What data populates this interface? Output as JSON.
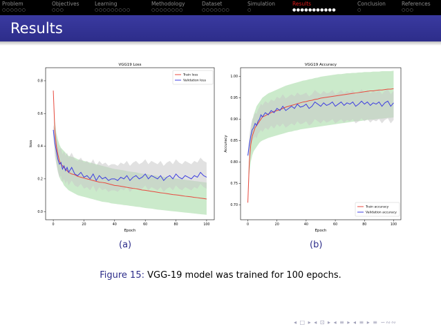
{
  "nav": {
    "sections": [
      {
        "label": "Problem",
        "dots": "○○○○○○",
        "active": false
      },
      {
        "label": "Objectives",
        "dots": "○○○",
        "active": false
      },
      {
        "label": "Learning",
        "dots": "○○○○○○○○○",
        "active": false
      },
      {
        "label": "Methodology",
        "dots": "○○○○○○○○",
        "active": false
      },
      {
        "label": "Dataset",
        "dots": "○○○○○○○",
        "active": false
      },
      {
        "label": "Simulation",
        "dots": "○",
        "active": false
      },
      {
        "label": "Results",
        "dots": "●●●●●●●●●●●",
        "active": true
      },
      {
        "label": "Conclusion",
        "dots": "○",
        "active": false
      },
      {
        "label": "References",
        "dots": "○○○",
        "active": false
      }
    ]
  },
  "frame": {
    "title": "Results"
  },
  "colors": {
    "train": "#e8473d",
    "validation": "#3d3de0",
    "train_band": "#a8dca8",
    "validation_band": "#c8c8c8",
    "accent": "#2d2d8a"
  },
  "chart_data": [
    {
      "type": "line",
      "title": "VGG19 Loss",
      "xlabel": "Epoch",
      "ylabel": "loss",
      "xlim": [
        -5,
        105
      ],
      "ylim": [
        -0.05,
        0.88
      ],
      "xticks": [
        0,
        20,
        40,
        60,
        80,
        100
      ],
      "yticks": [
        0.0,
        0.2,
        0.4,
        0.6,
        0.8
      ],
      "ytick_labels": [
        "0.0",
        "0.2",
        "0.4",
        "0.6",
        "0.8"
      ],
      "legend_position": "top-right",
      "x": [
        0,
        1,
        2,
        3,
        4,
        5,
        6,
        7,
        8,
        9,
        10,
        12,
        14,
        16,
        18,
        20,
        22,
        24,
        26,
        28,
        30,
        32,
        34,
        36,
        38,
        40,
        42,
        44,
        46,
        48,
        50,
        52,
        54,
        56,
        58,
        60,
        62,
        64,
        66,
        68,
        70,
        72,
        74,
        76,
        78,
        80,
        82,
        84,
        86,
        88,
        90,
        92,
        94,
        96,
        98,
        100
      ],
      "series": [
        {
          "name": "Train loss",
          "values": [
            0.74,
            0.5,
            0.4,
            0.35,
            0.31,
            0.29,
            0.28,
            0.27,
            0.26,
            0.25,
            0.24,
            0.23,
            0.225,
            0.215,
            0.21,
            0.205,
            0.2,
            0.195,
            0.19,
            0.185,
            0.18,
            0.178,
            0.175,
            0.17,
            0.165,
            0.16,
            0.158,
            0.155,
            0.152,
            0.148,
            0.145,
            0.142,
            0.14,
            0.136,
            0.132,
            0.13,
            0.127,
            0.124,
            0.121,
            0.118,
            0.115,
            0.113,
            0.11,
            0.107,
            0.104,
            0.102,
            0.1,
            0.097,
            0.094,
            0.092,
            0.09,
            0.087,
            0.085,
            0.082,
            0.08,
            0.077
          ],
          "lower": [
            0.73,
            0.4,
            0.3,
            0.25,
            0.21,
            0.19,
            0.18,
            0.16,
            0.15,
            0.14,
            0.13,
            0.12,
            0.11,
            0.1,
            0.095,
            0.09,
            0.085,
            0.08,
            0.075,
            0.07,
            0.065,
            0.06,
            0.058,
            0.055,
            0.05,
            0.048,
            0.045,
            0.043,
            0.04,
            0.038,
            0.035,
            0.033,
            0.03,
            0.028,
            0.025,
            0.022,
            0.02,
            0.018,
            0.015,
            0.012,
            0.01,
            0.008,
            0.006,
            0.004,
            0.002,
            0.0,
            -0.002,
            -0.004,
            -0.006,
            -0.008,
            -0.01,
            -0.012,
            -0.014,
            -0.016,
            -0.018,
            -0.02
          ],
          "upper": [
            0.75,
            0.56,
            0.48,
            0.44,
            0.41,
            0.39,
            0.38,
            0.37,
            0.36,
            0.35,
            0.34,
            0.335,
            0.33,
            0.32,
            0.315,
            0.31,
            0.305,
            0.3,
            0.295,
            0.29,
            0.285,
            0.28,
            0.275,
            0.27,
            0.265,
            0.26,
            0.258,
            0.255,
            0.252,
            0.248,
            0.245,
            0.242,
            0.24,
            0.236,
            0.232,
            0.23,
            0.227,
            0.224,
            0.221,
            0.218,
            0.215,
            0.213,
            0.21,
            0.207,
            0.204,
            0.202,
            0.2,
            0.197,
            0.194,
            0.192,
            0.19,
            0.187,
            0.185,
            0.182,
            0.18,
            0.177
          ]
        },
        {
          "name": "Validation loss",
          "values": [
            0.5,
            0.42,
            0.37,
            0.32,
            0.29,
            0.3,
            0.26,
            0.28,
            0.25,
            0.27,
            0.24,
            0.27,
            0.23,
            0.22,
            0.24,
            0.21,
            0.22,
            0.2,
            0.23,
            0.19,
            0.22,
            0.2,
            0.21,
            0.19,
            0.2,
            0.2,
            0.19,
            0.21,
            0.2,
            0.22,
            0.19,
            0.21,
            0.22,
            0.2,
            0.21,
            0.23,
            0.2,
            0.22,
            0.21,
            0.2,
            0.22,
            0.19,
            0.21,
            0.22,
            0.2,
            0.23,
            0.21,
            0.2,
            0.22,
            0.21,
            0.2,
            0.22,
            0.21,
            0.24,
            0.22,
            0.21
          ],
          "lower": [
            0.47,
            0.34,
            0.29,
            0.24,
            0.21,
            0.22,
            0.18,
            0.2,
            0.17,
            0.19,
            0.16,
            0.19,
            0.16,
            0.15,
            0.17,
            0.14,
            0.15,
            0.13,
            0.16,
            0.12,
            0.15,
            0.13,
            0.14,
            0.12,
            0.13,
            0.13,
            0.12,
            0.14,
            0.13,
            0.15,
            0.12,
            0.14,
            0.15,
            0.13,
            0.14,
            0.16,
            0.13,
            0.15,
            0.14,
            0.13,
            0.15,
            0.12,
            0.14,
            0.15,
            0.13,
            0.16,
            0.14,
            0.13,
            0.15,
            0.14,
            0.13,
            0.15,
            0.14,
            0.17,
            0.15,
            0.14
          ],
          "upper": [
            0.53,
            0.5,
            0.45,
            0.41,
            0.38,
            0.39,
            0.35,
            0.37,
            0.34,
            0.36,
            0.33,
            0.36,
            0.32,
            0.31,
            0.33,
            0.3,
            0.31,
            0.29,
            0.32,
            0.28,
            0.31,
            0.29,
            0.3,
            0.28,
            0.29,
            0.29,
            0.28,
            0.3,
            0.29,
            0.31,
            0.28,
            0.3,
            0.31,
            0.29,
            0.3,
            0.32,
            0.29,
            0.31,
            0.3,
            0.29,
            0.31,
            0.28,
            0.3,
            0.31,
            0.29,
            0.32,
            0.3,
            0.29,
            0.31,
            0.3,
            0.29,
            0.31,
            0.3,
            0.33,
            0.31,
            0.3
          ]
        }
      ]
    },
    {
      "type": "line",
      "title": "VGG19 Accuracy",
      "xlabel": "Epoch",
      "ylabel": "Accuracy",
      "xlim": [
        -5,
        105
      ],
      "ylim": [
        0.665,
        1.02
      ],
      "xticks": [
        0,
        20,
        40,
        60,
        80,
        100
      ],
      "yticks": [
        0.7,
        0.75,
        0.8,
        0.85,
        0.9,
        0.95,
        1.0
      ],
      "ytick_labels": [
        "0.70",
        "0.75",
        "0.80",
        "0.85",
        "0.90",
        "0.95",
        "1.00"
      ],
      "legend_position": "bottom-right",
      "x": [
        0,
        1,
        2,
        3,
        4,
        5,
        6,
        7,
        8,
        9,
        10,
        12,
        14,
        16,
        18,
        20,
        22,
        24,
        26,
        28,
        30,
        32,
        34,
        36,
        38,
        40,
        42,
        44,
        46,
        48,
        50,
        52,
        54,
        56,
        58,
        60,
        62,
        64,
        66,
        68,
        70,
        72,
        74,
        76,
        78,
        80,
        82,
        84,
        86,
        88,
        90,
        92,
        94,
        96,
        98,
        100
      ],
      "series": [
        {
          "name": "Train accuracy",
          "values": [
            0.705,
            0.8,
            0.84,
            0.86,
            0.87,
            0.88,
            0.885,
            0.89,
            0.895,
            0.9,
            0.905,
            0.908,
            0.912,
            0.915,
            0.918,
            0.92,
            0.922,
            0.925,
            0.928,
            0.93,
            0.932,
            0.934,
            0.936,
            0.938,
            0.94,
            0.941,
            0.943,
            0.944,
            0.946,
            0.947,
            0.949,
            0.95,
            0.951,
            0.952,
            0.953,
            0.954,
            0.955,
            0.956,
            0.957,
            0.958,
            0.959,
            0.96,
            0.961,
            0.962,
            0.963,
            0.964,
            0.965,
            0.966,
            0.966,
            0.967,
            0.968,
            0.968,
            0.969,
            0.97,
            0.97,
            0.971
          ],
          "lower": [
            0.7,
            0.77,
            0.8,
            0.815,
            0.825,
            0.83,
            0.835,
            0.84,
            0.845,
            0.848,
            0.85,
            0.853,
            0.856,
            0.858,
            0.86,
            0.862,
            0.864,
            0.866,
            0.868,
            0.87,
            0.871,
            0.873,
            0.874,
            0.876,
            0.877,
            0.878,
            0.879,
            0.88,
            0.881,
            0.882,
            0.883,
            0.884,
            0.885,
            0.886,
            0.887,
            0.888,
            0.889,
            0.89,
            0.891,
            0.892,
            0.893,
            0.894,
            0.895,
            0.895,
            0.896,
            0.897,
            0.898,
            0.899,
            0.899,
            0.9,
            0.901,
            0.901,
            0.902,
            0.903,
            0.903,
            0.904
          ],
          "upper": [
            0.71,
            0.83,
            0.87,
            0.895,
            0.91,
            0.92,
            0.93,
            0.935,
            0.94,
            0.945,
            0.95,
            0.955,
            0.96,
            0.963,
            0.966,
            0.969,
            0.972,
            0.975,
            0.978,
            0.98,
            0.982,
            0.984,
            0.986,
            0.988,
            0.99,
            0.991,
            0.993,
            0.994,
            0.996,
            0.997,
            0.999,
            1.0,
            1.001,
            1.002,
            1.003,
            1.004,
            1.005,
            1.005,
            1.006,
            1.007,
            1.007,
            1.008,
            1.008,
            1.009,
            1.009,
            1.01,
            1.01,
            1.01,
            1.011,
            1.011,
            1.011,
            1.012,
            1.012,
            1.012,
            1.012,
            1.013
          ]
        },
        {
          "name": "Validation accuracy",
          "values": [
            0.815,
            0.84,
            0.86,
            0.875,
            0.88,
            0.89,
            0.885,
            0.895,
            0.9,
            0.91,
            0.905,
            0.915,
            0.91,
            0.92,
            0.915,
            0.925,
            0.92,
            0.93,
            0.92,
            0.925,
            0.93,
            0.925,
            0.935,
            0.928,
            0.93,
            0.935,
            0.925,
            0.93,
            0.94,
            0.935,
            0.93,
            0.938,
            0.932,
            0.935,
            0.94,
            0.93,
            0.935,
            0.94,
            0.932,
            0.938,
            0.935,
            0.94,
            0.93,
            0.935,
            0.942,
            0.935,
            0.94,
            0.932,
            0.938,
            0.935,
            0.94,
            0.93,
            0.938,
            0.942,
            0.93,
            0.938
          ],
          "lower": [
            0.81,
            0.82,
            0.835,
            0.85,
            0.855,
            0.86,
            0.855,
            0.865,
            0.87,
            0.875,
            0.87,
            0.88,
            0.875,
            0.885,
            0.878,
            0.888,
            0.882,
            0.89,
            0.88,
            0.885,
            0.89,
            0.885,
            0.895,
            0.888,
            0.89,
            0.895,
            0.885,
            0.89,
            0.9,
            0.895,
            0.89,
            0.898,
            0.892,
            0.895,
            0.9,
            0.89,
            0.895,
            0.9,
            0.892,
            0.898,
            0.895,
            0.9,
            0.89,
            0.895,
            0.902,
            0.895,
            0.9,
            0.892,
            0.898,
            0.895,
            0.9,
            0.89,
            0.898,
            0.902,
            0.89,
            0.898
          ],
          "upper": [
            0.82,
            0.86,
            0.885,
            0.9,
            0.905,
            0.915,
            0.912,
            0.922,
            0.928,
            0.936,
            0.932,
            0.942,
            0.937,
            0.946,
            0.942,
            0.952,
            0.948,
            0.958,
            0.948,
            0.953,
            0.958,
            0.953,
            0.962,
            0.956,
            0.958,
            0.962,
            0.953,
            0.958,
            0.968,
            0.962,
            0.958,
            0.966,
            0.96,
            0.962,
            0.968,
            0.958,
            0.962,
            0.968,
            0.96,
            0.966,
            0.962,
            0.968,
            0.958,
            0.962,
            0.97,
            0.962,
            0.968,
            0.96,
            0.966,
            0.962,
            0.968,
            0.958,
            0.966,
            0.97,
            0.958,
            0.966
          ]
        }
      ]
    }
  ],
  "subfig_labels": [
    "(a)",
    "(b)"
  ],
  "caption": {
    "prefix": "Figure 15:",
    "text": "VGG-19 model was trained for 100 epochs."
  },
  "beamer_nav": "◂ □ ▸ ◂ ⊡ ▸ ◂ ≡ ▸ ◂ ≡ ▸ ≡ ∽∾∾"
}
